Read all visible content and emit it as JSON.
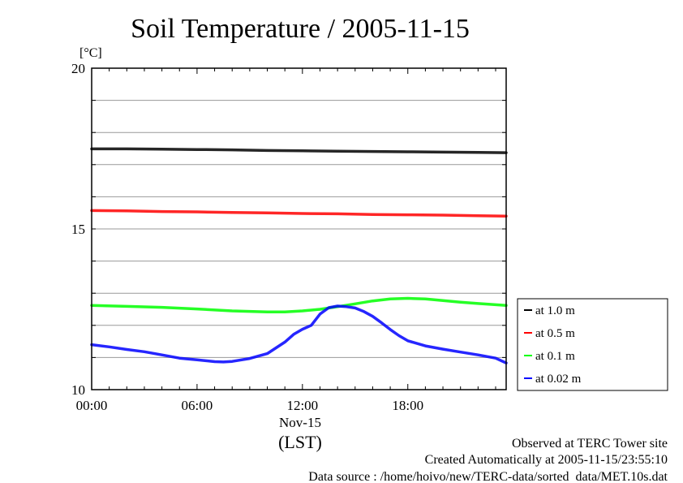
{
  "chart_data": {
    "type": "line",
    "title": "Soil Temperature / 2005-11-15",
    "ylabel": "[°C]",
    "xlabel": "(LST)",
    "date_label": "Nov-15",
    "xlim": [
      0,
      23.6
    ],
    "ylim": [
      10,
      20
    ],
    "x_ticks": [
      {
        "x": 0,
        "label": "00:00"
      },
      {
        "x": 6,
        "label": "06:00"
      },
      {
        "x": 12,
        "label": "12:00"
      },
      {
        "x": 18,
        "label": "18:00"
      }
    ],
    "y_ticks": [
      {
        "y": 10,
        "label": "10"
      },
      {
        "y": 15,
        "label": "15"
      },
      {
        "y": 20,
        "label": "20"
      }
    ],
    "grid": "horizontal",
    "legend_position": "right",
    "series": [
      {
        "name": "at 1.0 m",
        "color": "#000000",
        "x": [
          0,
          2,
          4,
          6,
          8,
          10,
          12,
          14,
          16,
          18,
          20,
          22,
          23.6
        ],
        "y": [
          17.49,
          17.49,
          17.48,
          17.47,
          17.46,
          17.44,
          17.43,
          17.42,
          17.41,
          17.4,
          17.39,
          17.38,
          17.37
        ]
      },
      {
        "name": "at 0.5 m",
        "color": "#ff0000",
        "x": [
          0,
          2,
          4,
          6,
          8,
          10,
          12,
          14,
          16,
          18,
          20,
          22,
          23.6
        ],
        "y": [
          15.57,
          15.56,
          15.54,
          15.53,
          15.51,
          15.5,
          15.48,
          15.47,
          15.45,
          15.44,
          15.43,
          15.41,
          15.4
        ]
      },
      {
        "name": "at 0.1 m",
        "color": "#00ff00",
        "x": [
          0,
          2,
          4,
          6,
          8,
          10,
          11,
          12,
          13,
          14,
          15,
          16,
          17,
          18,
          19,
          20,
          21,
          22,
          23.6
        ],
        "y": [
          12.62,
          12.59,
          12.56,
          12.51,
          12.45,
          12.42,
          12.42,
          12.45,
          12.5,
          12.58,
          12.67,
          12.76,
          12.82,
          12.84,
          12.82,
          12.77,
          12.72,
          12.68,
          12.62
        ]
      },
      {
        "name": "at 0.02 m",
        "color": "#0000ff",
        "x": [
          0,
          1,
          2,
          3,
          4,
          5,
          6,
          7,
          7.5,
          8,
          9,
          10,
          11,
          11.5,
          12,
          12.5,
          13,
          13.5,
          14,
          14.5,
          15,
          15.5,
          16,
          16.5,
          17,
          17.5,
          18,
          19,
          20,
          21,
          22,
          23,
          23.6
        ],
        "y": [
          11.4,
          11.33,
          11.25,
          11.18,
          11.08,
          10.98,
          10.93,
          10.87,
          10.86,
          10.88,
          10.97,
          11.12,
          11.48,
          11.72,
          11.88,
          12.0,
          12.35,
          12.55,
          12.6,
          12.58,
          12.54,
          12.43,
          12.28,
          12.08,
          11.87,
          11.68,
          11.52,
          11.36,
          11.26,
          11.17,
          11.08,
          10.98,
          10.83
        ]
      }
    ]
  },
  "footer": {
    "line1": "Observed at TERC Tower site",
    "line2": "Created Automatically at 2005-11-15/23:55:10",
    "line3": "Data source : /home/hoivo/new/TERC-data/sorted  data/MET.10s.dat"
  }
}
